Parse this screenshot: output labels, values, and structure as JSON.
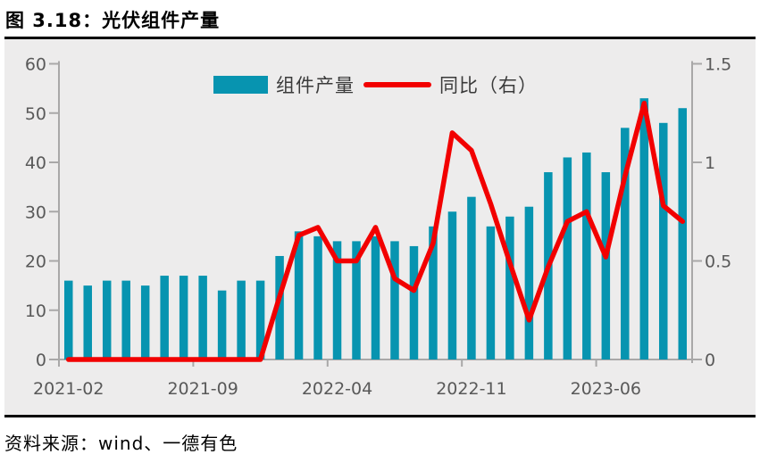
{
  "title": "图 3.18：光伏组件产量",
  "source": "资料来源：wind、一德有色",
  "legend": {
    "bar_label": "组件产量",
    "line_label": "同比（右）"
  },
  "colors": {
    "bar": "#0794B0",
    "line": "#F20000",
    "panel_bg": "#EDECEC",
    "axis": "#A9A8A8",
    "tick_text": "#595959",
    "rule": "#000000",
    "legend_text": "#3A3A3A"
  },
  "chart_data": {
    "type": "bar",
    "title": "光伏组件产量",
    "categories": [
      "2021-02",
      "2021-03",
      "2021-04",
      "2021-05",
      "2021-06",
      "2021-07",
      "2021-08",
      "2021-09",
      "2021-10",
      "2021-11",
      "2021-12",
      "2022-01",
      "2022-02",
      "2022-03",
      "2022-04",
      "2022-05",
      "2022-06",
      "2022-07",
      "2022-08",
      "2022-09",
      "2022-10",
      "2022-11",
      "2022-12",
      "2023-01",
      "2023-02",
      "2023-03",
      "2023-04",
      "2023-05",
      "2023-06",
      "2023-07",
      "2023-08",
      "2023-09",
      "2023-10"
    ],
    "series": [
      {
        "name": "组件产量",
        "type": "bar",
        "axis": "left",
        "values": [
          16,
          15,
          16,
          16,
          15,
          17,
          17,
          17,
          14,
          16,
          16,
          21,
          26,
          25,
          24,
          24,
          25,
          24,
          23,
          27,
          30,
          33,
          27,
          29,
          31,
          38,
          41,
          42,
          38,
          47,
          53,
          48,
          51
        ]
      },
      {
        "name": "同比（右）",
        "type": "line",
        "axis": "right",
        "values": [
          0,
          0,
          0,
          0,
          0,
          0,
          0,
          0,
          0,
          0,
          0,
          0.32,
          0.63,
          0.67,
          0.5,
          0.5,
          0.67,
          0.41,
          0.35,
          0.59,
          1.15,
          1.06,
          0.79,
          0.49,
          0.2,
          0.47,
          0.7,
          0.75,
          0.52,
          0.93,
          1.3,
          0.78,
          0.7
        ]
      }
    ],
    "left_axis": {
      "min": 0,
      "max": 60,
      "step": 10,
      "tick_labels": [
        "0",
        "10",
        "20",
        "30",
        "40",
        "50",
        "60"
      ]
    },
    "right_axis": {
      "min": 0,
      "max": 1.5,
      "step": 0.5,
      "tick_labels": [
        "0",
        "0.5",
        "1",
        "1.5"
      ]
    },
    "x_ticks": {
      "indices": [
        0,
        7,
        14,
        21,
        28
      ],
      "labels": [
        "2021-02",
        "2021-09",
        "2022-04",
        "2022-11",
        "2023-06"
      ]
    },
    "grid": false,
    "legend_position": "top-center"
  }
}
